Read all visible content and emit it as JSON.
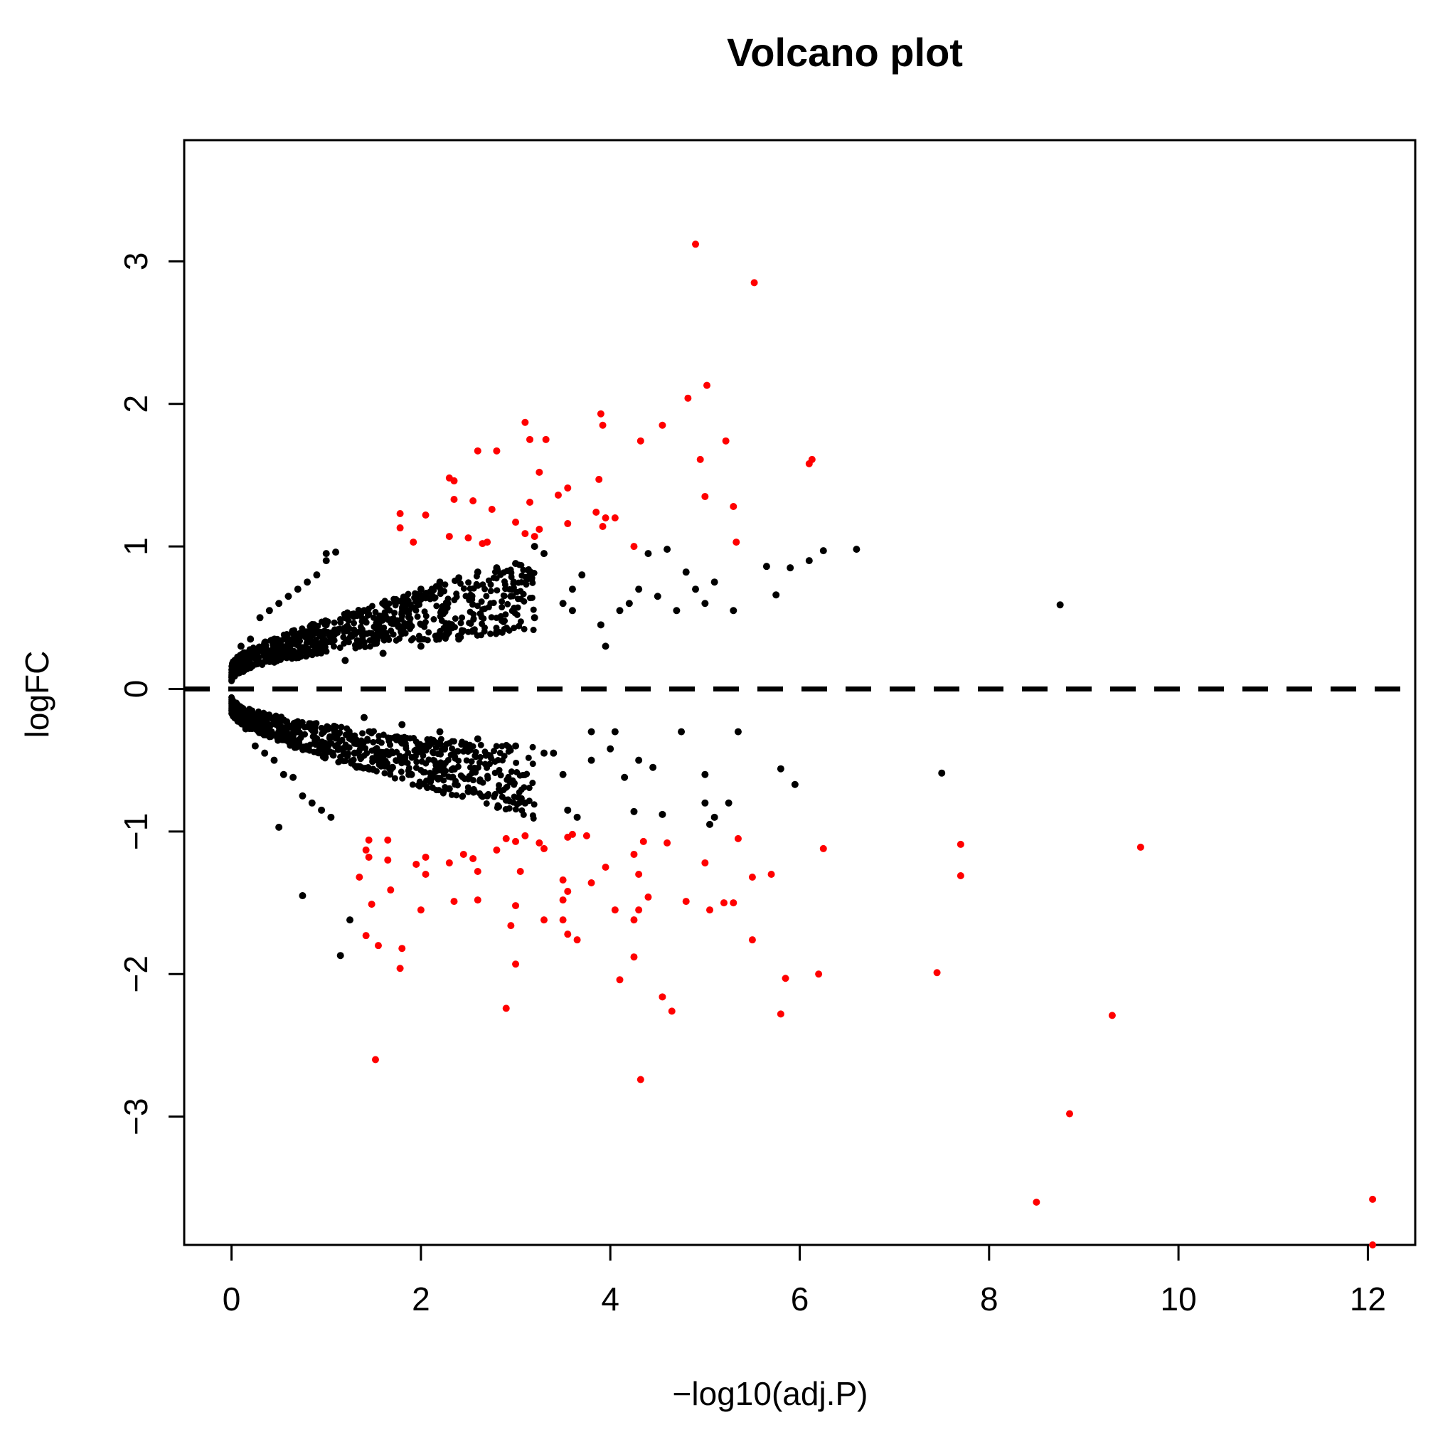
{
  "chart_data": {
    "type": "scatter",
    "title": "Volcano plot",
    "xlabel": "−log10(adj.P)",
    "ylabel": "logFC",
    "xlim": [
      -0.5,
      12.5
    ],
    "ylim": [
      -3.9,
      3.85
    ],
    "x_ticks": [
      0,
      2,
      4,
      6,
      8,
      10,
      12
    ],
    "y_ticks": [
      -3,
      -2,
      -1,
      0,
      1,
      2,
      3
    ],
    "x_tick_labels": [
      "0",
      "2",
      "4",
      "6",
      "8",
      "10",
      "12"
    ],
    "y_tick_labels": [
      "−3",
      "−2",
      "−1",
      "0",
      "1",
      "2",
      "3"
    ],
    "reference_line": {
      "axis": "y",
      "value": 0,
      "style": "dashed"
    },
    "grid": false,
    "legend": "none",
    "colors": {
      "significant": "#ff0000",
      "non_significant": "#000000",
      "reference_line": "#000000"
    },
    "series": [
      {
        "color": "#000000",
        "points": [
          [
            0.1,
            0.3
          ],
          [
            0.15,
            -0.28
          ],
          [
            0.2,
            0.35
          ],
          [
            0.25,
            -0.4
          ],
          [
            0.3,
            0.5
          ],
          [
            0.35,
            -0.45
          ],
          [
            0.4,
            0.55
          ],
          [
            0.45,
            -0.5
          ],
          [
            0.5,
            0.6
          ],
          [
            0.55,
            -0.6
          ],
          [
            0.6,
            0.65
          ],
          [
            0.65,
            -0.62
          ],
          [
            0.7,
            0.7
          ],
          [
            0.75,
            -0.75
          ],
          [
            0.8,
            0.75
          ],
          [
            0.85,
            -0.8
          ],
          [
            0.9,
            0.8
          ],
          [
            0.95,
            -0.85
          ],
          [
            1.0,
            0.9
          ],
          [
            1.05,
            -0.9
          ],
          [
            0.2,
            0.15
          ],
          [
            0.3,
            -0.2
          ],
          [
            0.4,
            0.25
          ],
          [
            0.5,
            -0.3
          ],
          [
            0.6,
            0.35
          ],
          [
            0.7,
            -0.3
          ],
          [
            0.8,
            0.4
          ],
          [
            0.9,
            -0.35
          ],
          [
            1.0,
            0.45
          ],
          [
            1.1,
            -0.4
          ],
          [
            1.2,
            0.5
          ],
          [
            1.3,
            -0.45
          ],
          [
            1.4,
            0.55
          ],
          [
            1.5,
            -0.5
          ],
          [
            1.6,
            0.6
          ],
          [
            1.7,
            -0.55
          ],
          [
            1.8,
            0.62
          ],
          [
            1.9,
            -0.6
          ],
          [
            2.0,
            0.7
          ],
          [
            2.1,
            -0.65
          ],
          [
            2.2,
            0.75
          ],
          [
            2.3,
            -0.7
          ],
          [
            2.4,
            0.78
          ],
          [
            2.5,
            -0.72
          ],
          [
            2.6,
            0.82
          ],
          [
            2.7,
            -0.75
          ],
          [
            2.8,
            0.85
          ],
          [
            2.9,
            -0.78
          ],
          [
            3.0,
            0.88
          ],
          [
            3.1,
            -0.8
          ],
          [
            1.2,
            0.2
          ],
          [
            1.4,
            -0.2
          ],
          [
            1.6,
            0.25
          ],
          [
            1.8,
            -0.25
          ],
          [
            2.0,
            0.3
          ],
          [
            2.2,
            -0.3
          ],
          [
            2.4,
            0.35
          ],
          [
            2.6,
            -0.35
          ],
          [
            2.8,
            0.4
          ],
          [
            3.0,
            -0.4
          ],
          [
            3.2,
            0.5
          ],
          [
            3.4,
            -0.45
          ],
          [
            3.6,
            0.55
          ],
          [
            3.8,
            -0.5
          ],
          [
            1.0,
            0.95
          ],
          [
            1.1,
            0.96
          ],
          [
            0.75,
            -1.45
          ],
          [
            1.15,
            -1.87
          ],
          [
            1.25,
            -1.62
          ],
          [
            0.5,
            -0.97
          ],
          [
            3.2,
            1.0
          ],
          [
            3.3,
            0.95
          ],
          [
            3.5,
            0.6
          ],
          [
            3.6,
            0.7
          ],
          [
            3.7,
            0.8
          ],
          [
            3.8,
            -0.3
          ],
          [
            3.9,
            0.45
          ],
          [
            3.95,
            0.3
          ],
          [
            4.05,
            -0.3
          ],
          [
            4.1,
            0.55
          ],
          [
            4.2,
            0.6
          ],
          [
            4.3,
            0.7
          ],
          [
            4.4,
            0.95
          ],
          [
            4.5,
            0.65
          ],
          [
            4.6,
            0.98
          ],
          [
            4.7,
            0.55
          ],
          [
            4.8,
            0.82
          ],
          [
            4.9,
            0.7
          ],
          [
            5.0,
            0.6
          ],
          [
            5.1,
            0.75
          ],
          [
            5.3,
            0.55
          ],
          [
            5.65,
            0.86
          ],
          [
            5.75,
            0.66
          ],
          [
            5.9,
            0.85
          ],
          [
            6.1,
            0.9
          ],
          [
            6.25,
            0.97
          ],
          [
            6.6,
            0.98
          ],
          [
            8.75,
            0.59
          ],
          [
            4.15,
            -0.62
          ],
          [
            4.3,
            -0.5
          ],
          [
            4.45,
            -0.55
          ],
          [
            4.25,
            -0.86
          ],
          [
            4.75,
            -0.3
          ],
          [
            5.0,
            -0.6
          ],
          [
            5.0,
            -0.8
          ],
          [
            5.05,
            -0.95
          ],
          [
            5.25,
            -0.8
          ],
          [
            5.35,
            -0.3
          ],
          [
            5.8,
            -0.56
          ],
          [
            5.95,
            -0.67
          ],
          [
            7.5,
            -0.59
          ],
          [
            3.55,
            -0.85
          ],
          [
            3.3,
            -0.45
          ],
          [
            3.5,
            -0.6
          ],
          [
            3.65,
            -0.9
          ],
          [
            4.0,
            -0.42
          ],
          [
            4.55,
            -0.88
          ],
          [
            5.1,
            -0.9
          ]
        ]
      },
      {
        "color": "#ff0000",
        "points": [
          [
            4.9,
            3.12
          ],
          [
            5.52,
            2.85
          ],
          [
            5.02,
            2.13
          ],
          [
            4.82,
            2.04
          ],
          [
            3.9,
            1.93
          ],
          [
            3.92,
            1.85
          ],
          [
            4.55,
            1.85
          ],
          [
            3.1,
            1.87
          ],
          [
            3.15,
            1.75
          ],
          [
            3.32,
            1.75
          ],
          [
            2.6,
            1.67
          ],
          [
            2.8,
            1.67
          ],
          [
            4.32,
            1.74
          ],
          [
            5.22,
            1.74
          ],
          [
            4.95,
            1.61
          ],
          [
            6.1,
            1.58
          ],
          [
            6.13,
            1.61
          ],
          [
            3.25,
            1.52
          ],
          [
            2.3,
            1.48
          ],
          [
            2.35,
            1.46
          ],
          [
            3.88,
            1.47
          ],
          [
            3.55,
            1.41
          ],
          [
            3.45,
            1.36
          ],
          [
            2.35,
            1.33
          ],
          [
            2.55,
            1.32
          ],
          [
            5.0,
            1.35
          ],
          [
            3.15,
            1.31
          ],
          [
            5.3,
            1.28
          ],
          [
            2.75,
            1.26
          ],
          [
            3.85,
            1.24
          ],
          [
            3.95,
            1.2
          ],
          [
            1.78,
            1.23
          ],
          [
            2.05,
            1.22
          ],
          [
            4.05,
            1.2
          ],
          [
            3.0,
            1.17
          ],
          [
            3.55,
            1.16
          ],
          [
            3.92,
            1.14
          ],
          [
            1.78,
            1.13
          ],
          [
            3.25,
            1.12
          ],
          [
            3.1,
            1.09
          ],
          [
            3.2,
            1.07
          ],
          [
            2.3,
            1.07
          ],
          [
            2.5,
            1.06
          ],
          [
            1.92,
            1.03
          ],
          [
            2.7,
            1.03
          ],
          [
            2.65,
            1.02
          ],
          [
            5.33,
            1.03
          ],
          [
            4.25,
            1.0
          ],
          [
            1.45,
            -1.06
          ],
          [
            1.65,
            -1.06
          ],
          [
            1.42,
            -1.13
          ],
          [
            1.45,
            -1.18
          ],
          [
            1.65,
            -1.2
          ],
          [
            1.35,
            -1.32
          ],
          [
            2.05,
            -1.18
          ],
          [
            1.95,
            -1.23
          ],
          [
            2.05,
            -1.3
          ],
          [
            2.3,
            -1.22
          ],
          [
            2.45,
            -1.16
          ],
          [
            2.55,
            -1.19
          ],
          [
            2.6,
            -1.28
          ],
          [
            2.8,
            -1.13
          ],
          [
            2.9,
            -1.05
          ],
          [
            3.0,
            -1.07
          ],
          [
            3.1,
            -1.03
          ],
          [
            3.25,
            -1.08
          ],
          [
            3.3,
            -1.12
          ],
          [
            3.55,
            -1.04
          ],
          [
            3.6,
            -1.02
          ],
          [
            3.75,
            -1.03
          ],
          [
            3.05,
            -1.28
          ],
          [
            3.5,
            -1.34
          ],
          [
            3.8,
            -1.36
          ],
          [
            3.95,
            -1.25
          ],
          [
            4.25,
            -1.16
          ],
          [
            4.35,
            -1.07
          ],
          [
            4.3,
            -1.3
          ],
          [
            4.4,
            -1.46
          ],
          [
            3.5,
            -1.48
          ],
          [
            3.55,
            -1.42
          ],
          [
            1.68,
            -1.41
          ],
          [
            1.48,
            -1.51
          ],
          [
            2.0,
            -1.55
          ],
          [
            2.35,
            -1.49
          ],
          [
            2.6,
            -1.48
          ],
          [
            3.0,
            -1.52
          ],
          [
            3.3,
            -1.62
          ],
          [
            3.5,
            -1.62
          ],
          [
            3.55,
            -1.72
          ],
          [
            3.65,
            -1.76
          ],
          [
            2.95,
            -1.66
          ],
          [
            1.42,
            -1.73
          ],
          [
            1.55,
            -1.8
          ],
          [
            1.8,
            -1.82
          ],
          [
            1.78,
            -1.96
          ],
          [
            3.0,
            -1.93
          ],
          [
            4.05,
            -1.55
          ],
          [
            4.25,
            -1.62
          ],
          [
            4.3,
            -1.55
          ],
          [
            4.25,
            -1.88
          ],
          [
            4.1,
            -2.04
          ],
          [
            4.55,
            -2.16
          ],
          [
            4.65,
            -2.26
          ],
          [
            2.9,
            -2.24
          ],
          [
            1.52,
            -2.6
          ],
          [
            4.32,
            -2.74
          ],
          [
            4.8,
            -1.49
          ],
          [
            5.0,
            -1.22
          ],
          [
            5.05,
            -1.55
          ],
          [
            5.2,
            -1.5
          ],
          [
            5.3,
            -1.5
          ],
          [
            5.35,
            -1.05
          ],
          [
            5.5,
            -1.32
          ],
          [
            5.5,
            -1.76
          ],
          [
            5.7,
            -1.3
          ],
          [
            5.8,
            -2.28
          ],
          [
            5.85,
            -2.03
          ],
          [
            6.2,
            -2.0
          ],
          [
            6.25,
            -1.12
          ],
          [
            7.45,
            -1.99
          ],
          [
            7.7,
            -1.09
          ],
          [
            7.7,
            -1.31
          ],
          [
            8.5,
            -3.6
          ],
          [
            8.85,
            -2.98
          ],
          [
            9.3,
            -2.29
          ],
          [
            9.6,
            -1.11
          ],
          [
            12.05,
            -3.58
          ],
          [
            12.05,
            -3.9
          ],
          [
            4.6,
            -1.08
          ]
        ]
      }
    ]
  }
}
